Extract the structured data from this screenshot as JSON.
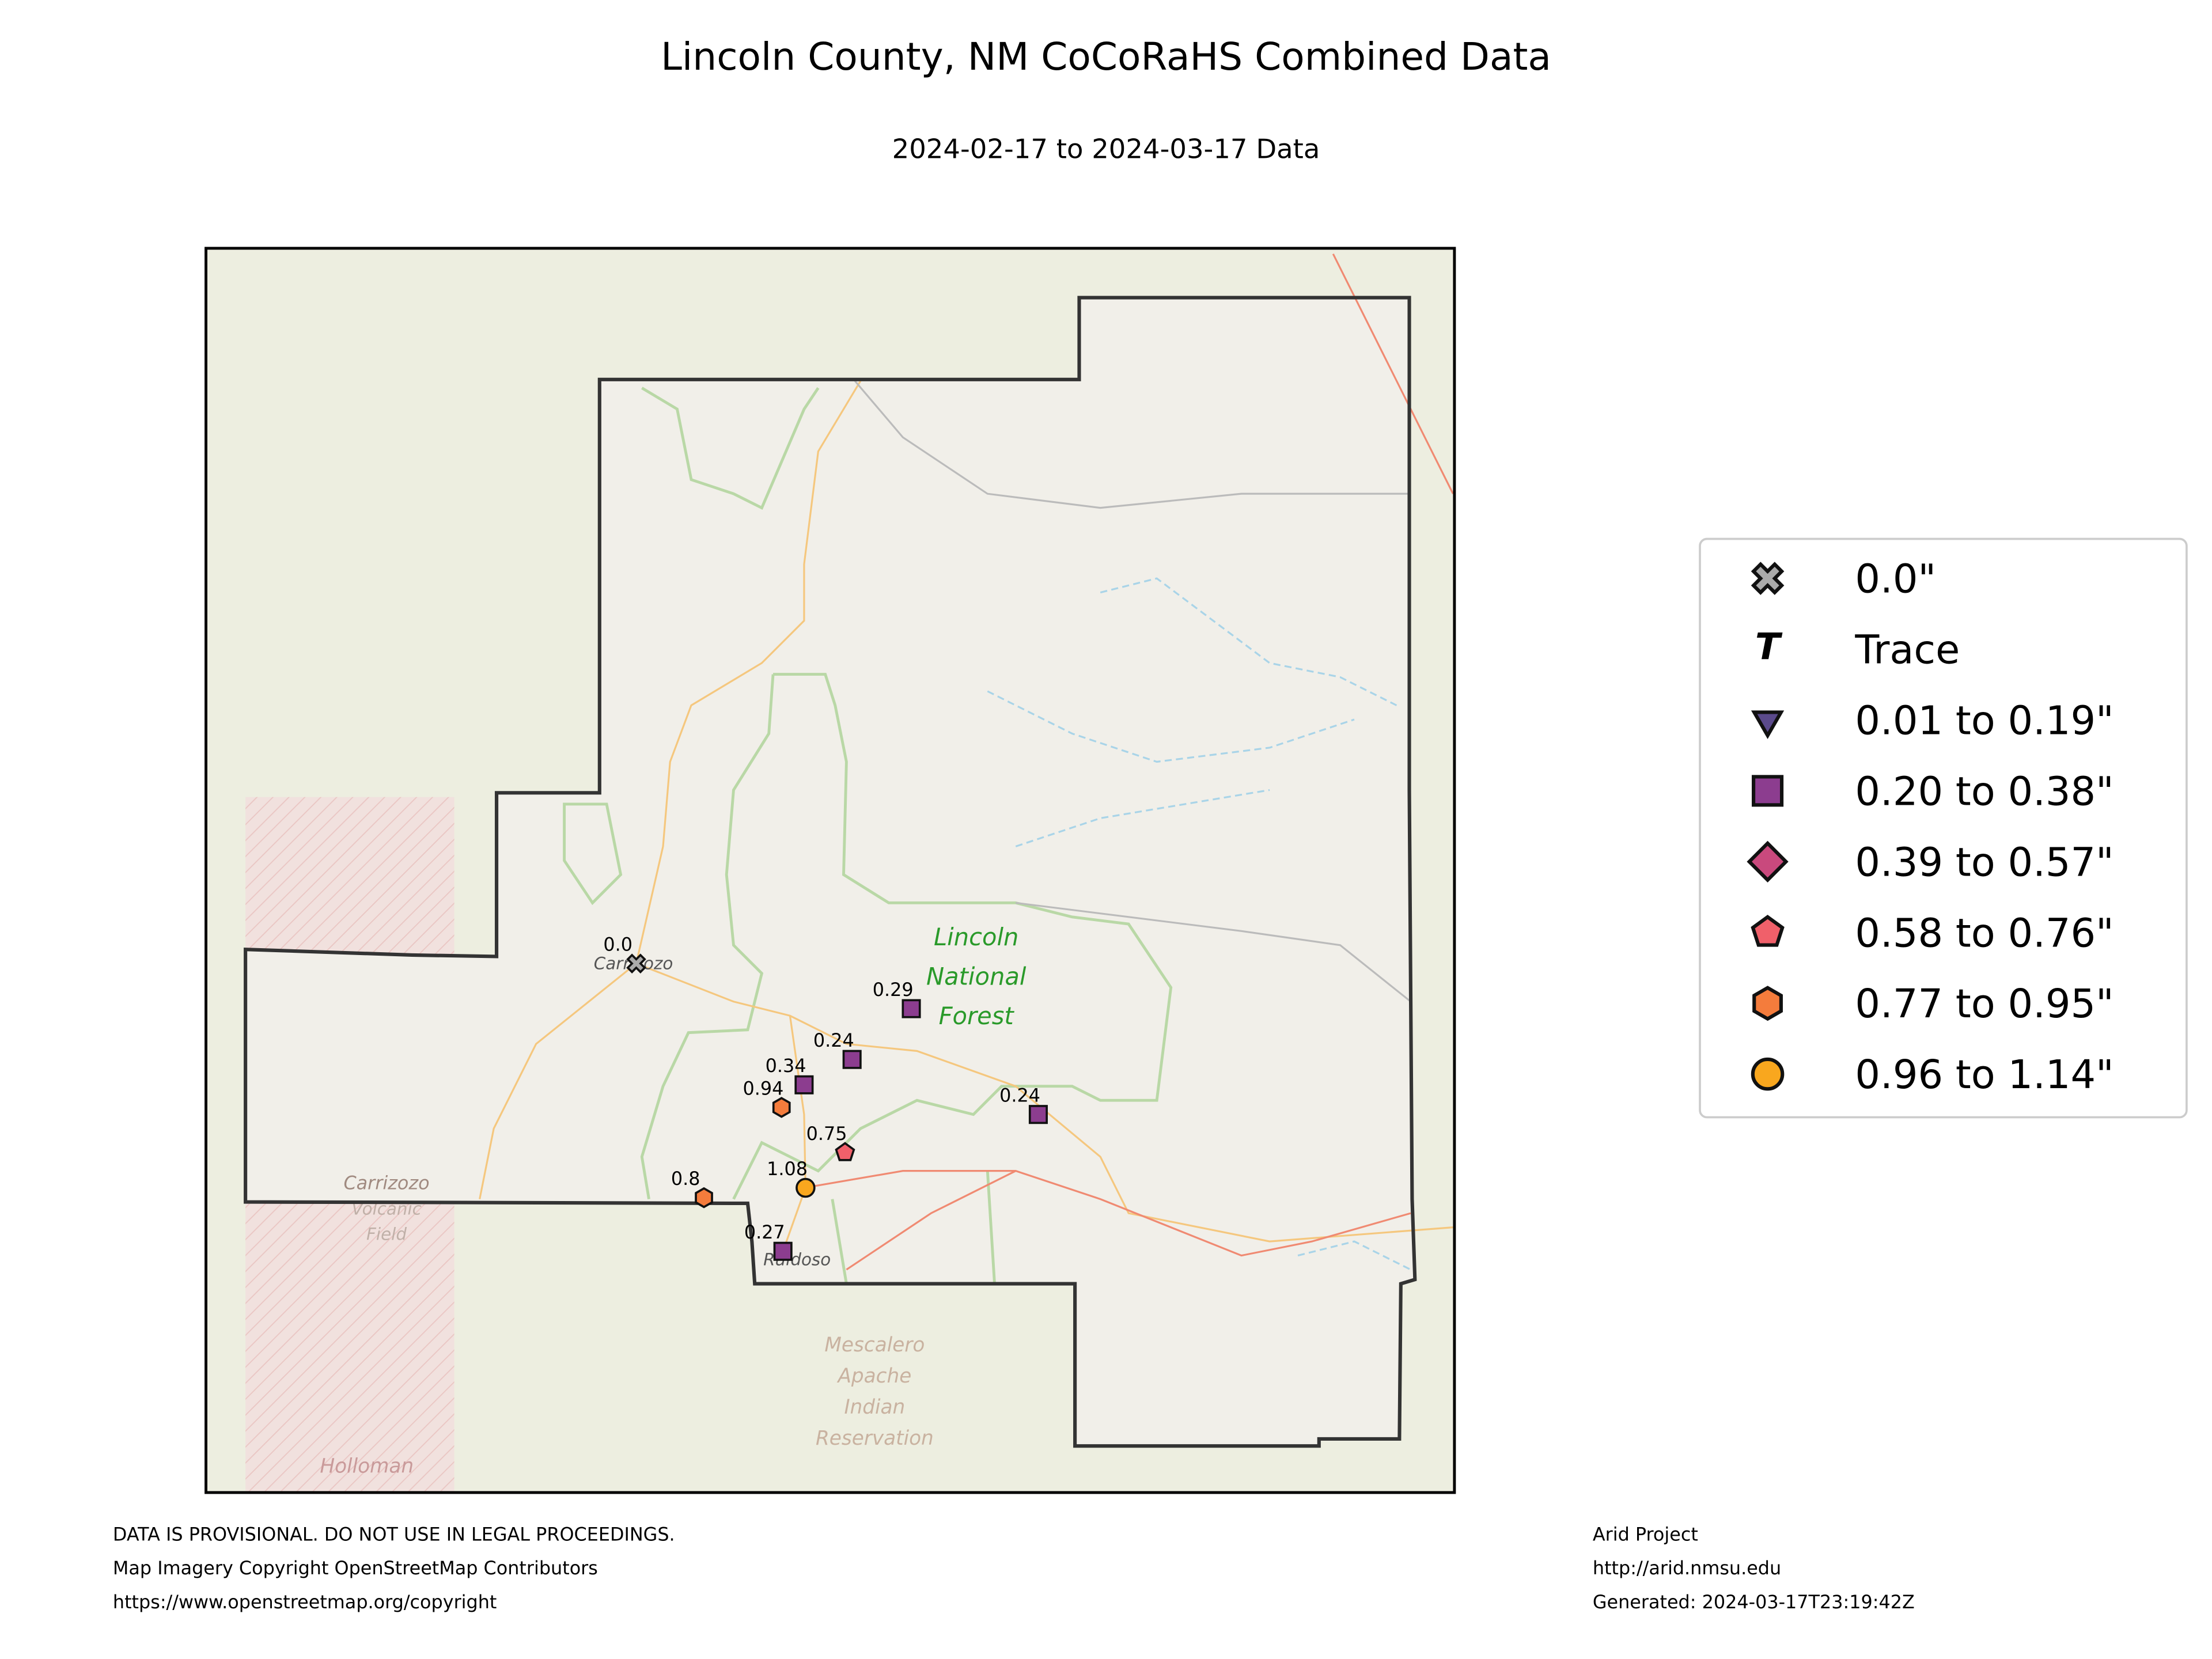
{
  "header": {
    "title": "Lincoln County, NM CoCoRaHS Combined Data",
    "subtitle": "2024-02-17 to 2024-03-17 Data"
  },
  "map_labels": [
    "Carrizozo",
    "Lincoln",
    "National",
    "Forest",
    "Ruidoso",
    "Carrizozo",
    "Volcanic",
    "Field",
    "Mescalero",
    "Apache",
    "Indian",
    "Reservation",
    "Holloman"
  ],
  "stations": [
    {
      "label": "0.0"
    },
    {
      "label": "0.29"
    },
    {
      "label": "0.24"
    },
    {
      "label": "0.34"
    },
    {
      "label": "0.94"
    },
    {
      "label": "0.75"
    },
    {
      "label": "1.08"
    },
    {
      "label": "0.8"
    },
    {
      "label": "0.24"
    },
    {
      "label": "0.27"
    }
  ],
  "legend": [
    "0.0\"",
    "Trace",
    "0.01 to 0.19\"",
    "0.20 to 0.38\"",
    "0.39 to 0.57\"",
    "0.58 to 0.76\"",
    "0.77 to 0.95\"",
    "0.96 to 1.14\""
  ],
  "footer": {
    "left": [
      "DATA IS PROVISIONAL. DO NOT USE IN LEGAL PROCEEDINGS.",
      "Map Imagery Copyright OpenStreetMap Contributors",
      "https://www.openstreetmap.org/copyright"
    ],
    "right": [
      "Arid Project",
      "http://arid.nmsu.edu",
      "Generated: 2024-03-17T23:19:42Z"
    ]
  }
}
